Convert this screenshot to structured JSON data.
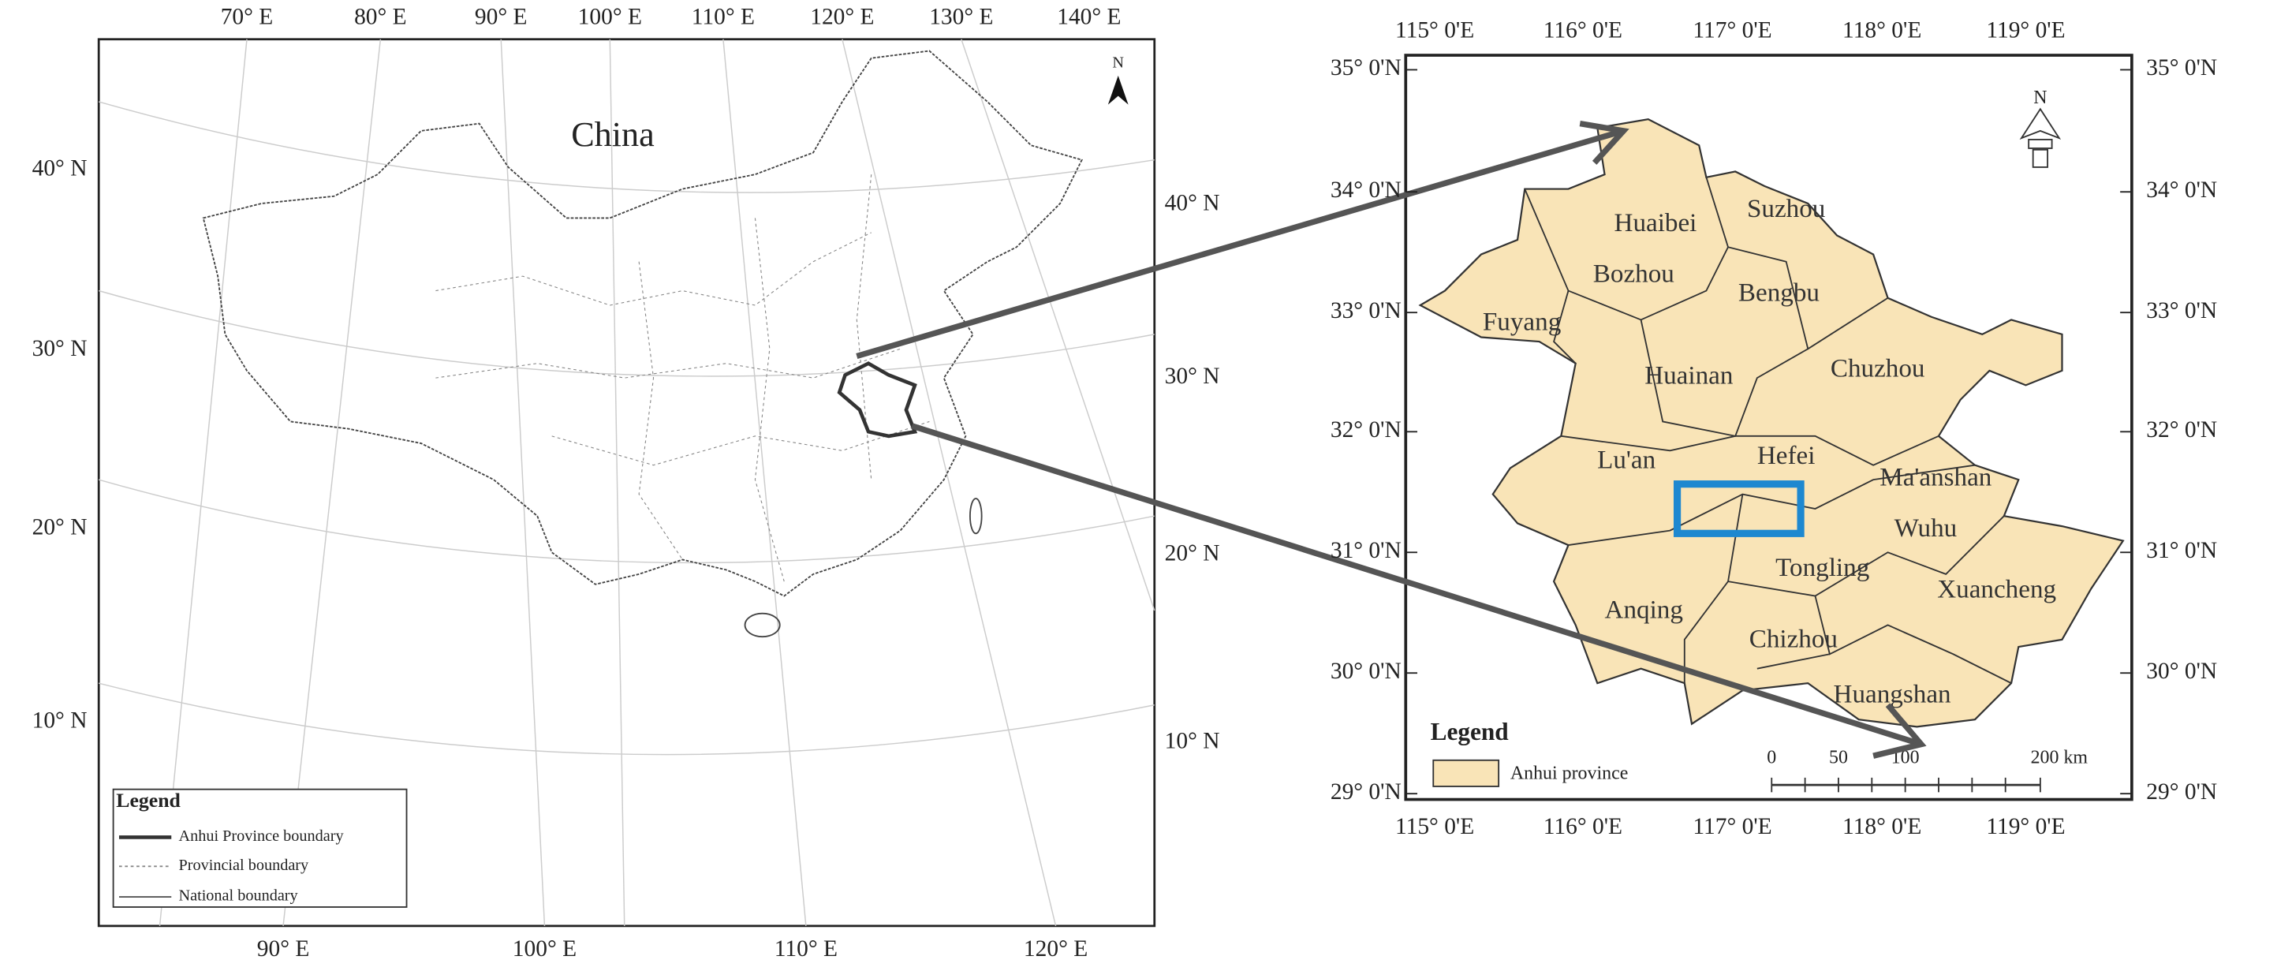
{
  "left_map": {
    "title": "China",
    "north_label": "N",
    "top_ticks": [
      "70° E",
      "80° E",
      "90° E",
      "100° E",
      "110° E",
      "120° E",
      "130° E",
      "140° E"
    ],
    "bottom_ticks": [
      "90° E",
      "100° E",
      "110° E",
      "120° E"
    ],
    "left_ticks": [
      "40° N",
      "30° N",
      "20° N",
      "10° N"
    ],
    "right_ticks": [
      "40° N",
      "30° N",
      "20° N",
      "10° N"
    ],
    "legend": {
      "title": "Legend",
      "items": [
        "Anhui Province boundary",
        "Provincial boundary",
        "National boundary"
      ]
    }
  },
  "right_map": {
    "north_label": "N",
    "x_ticks": [
      "115° 0'E",
      "116° 0'E",
      "117° 0'E",
      "118° 0'E",
      "119° 0'E"
    ],
    "y_ticks": [
      "35° 0'N",
      "34° 0'N",
      "33° 0'N",
      "32° 0'N",
      "31° 0'N",
      "30° 0'N",
      "29° 0'N"
    ],
    "cities": [
      "Huaibei",
      "Suzhou",
      "Bozhou",
      "Bengbu",
      "Fuyang",
      "Huainan",
      "Chuzhou",
      "Lu'an",
      "Hefei",
      "Ma'anshan",
      "Wuhu",
      "Tongling",
      "Xuancheng",
      "Anqing",
      "Chizhou",
      "Huangshan"
    ],
    "legend": {
      "title": "Legend",
      "items": [
        "Anhui province"
      ]
    },
    "scale_bar": [
      "0",
      "50",
      "100",
      "200 km"
    ]
  }
}
